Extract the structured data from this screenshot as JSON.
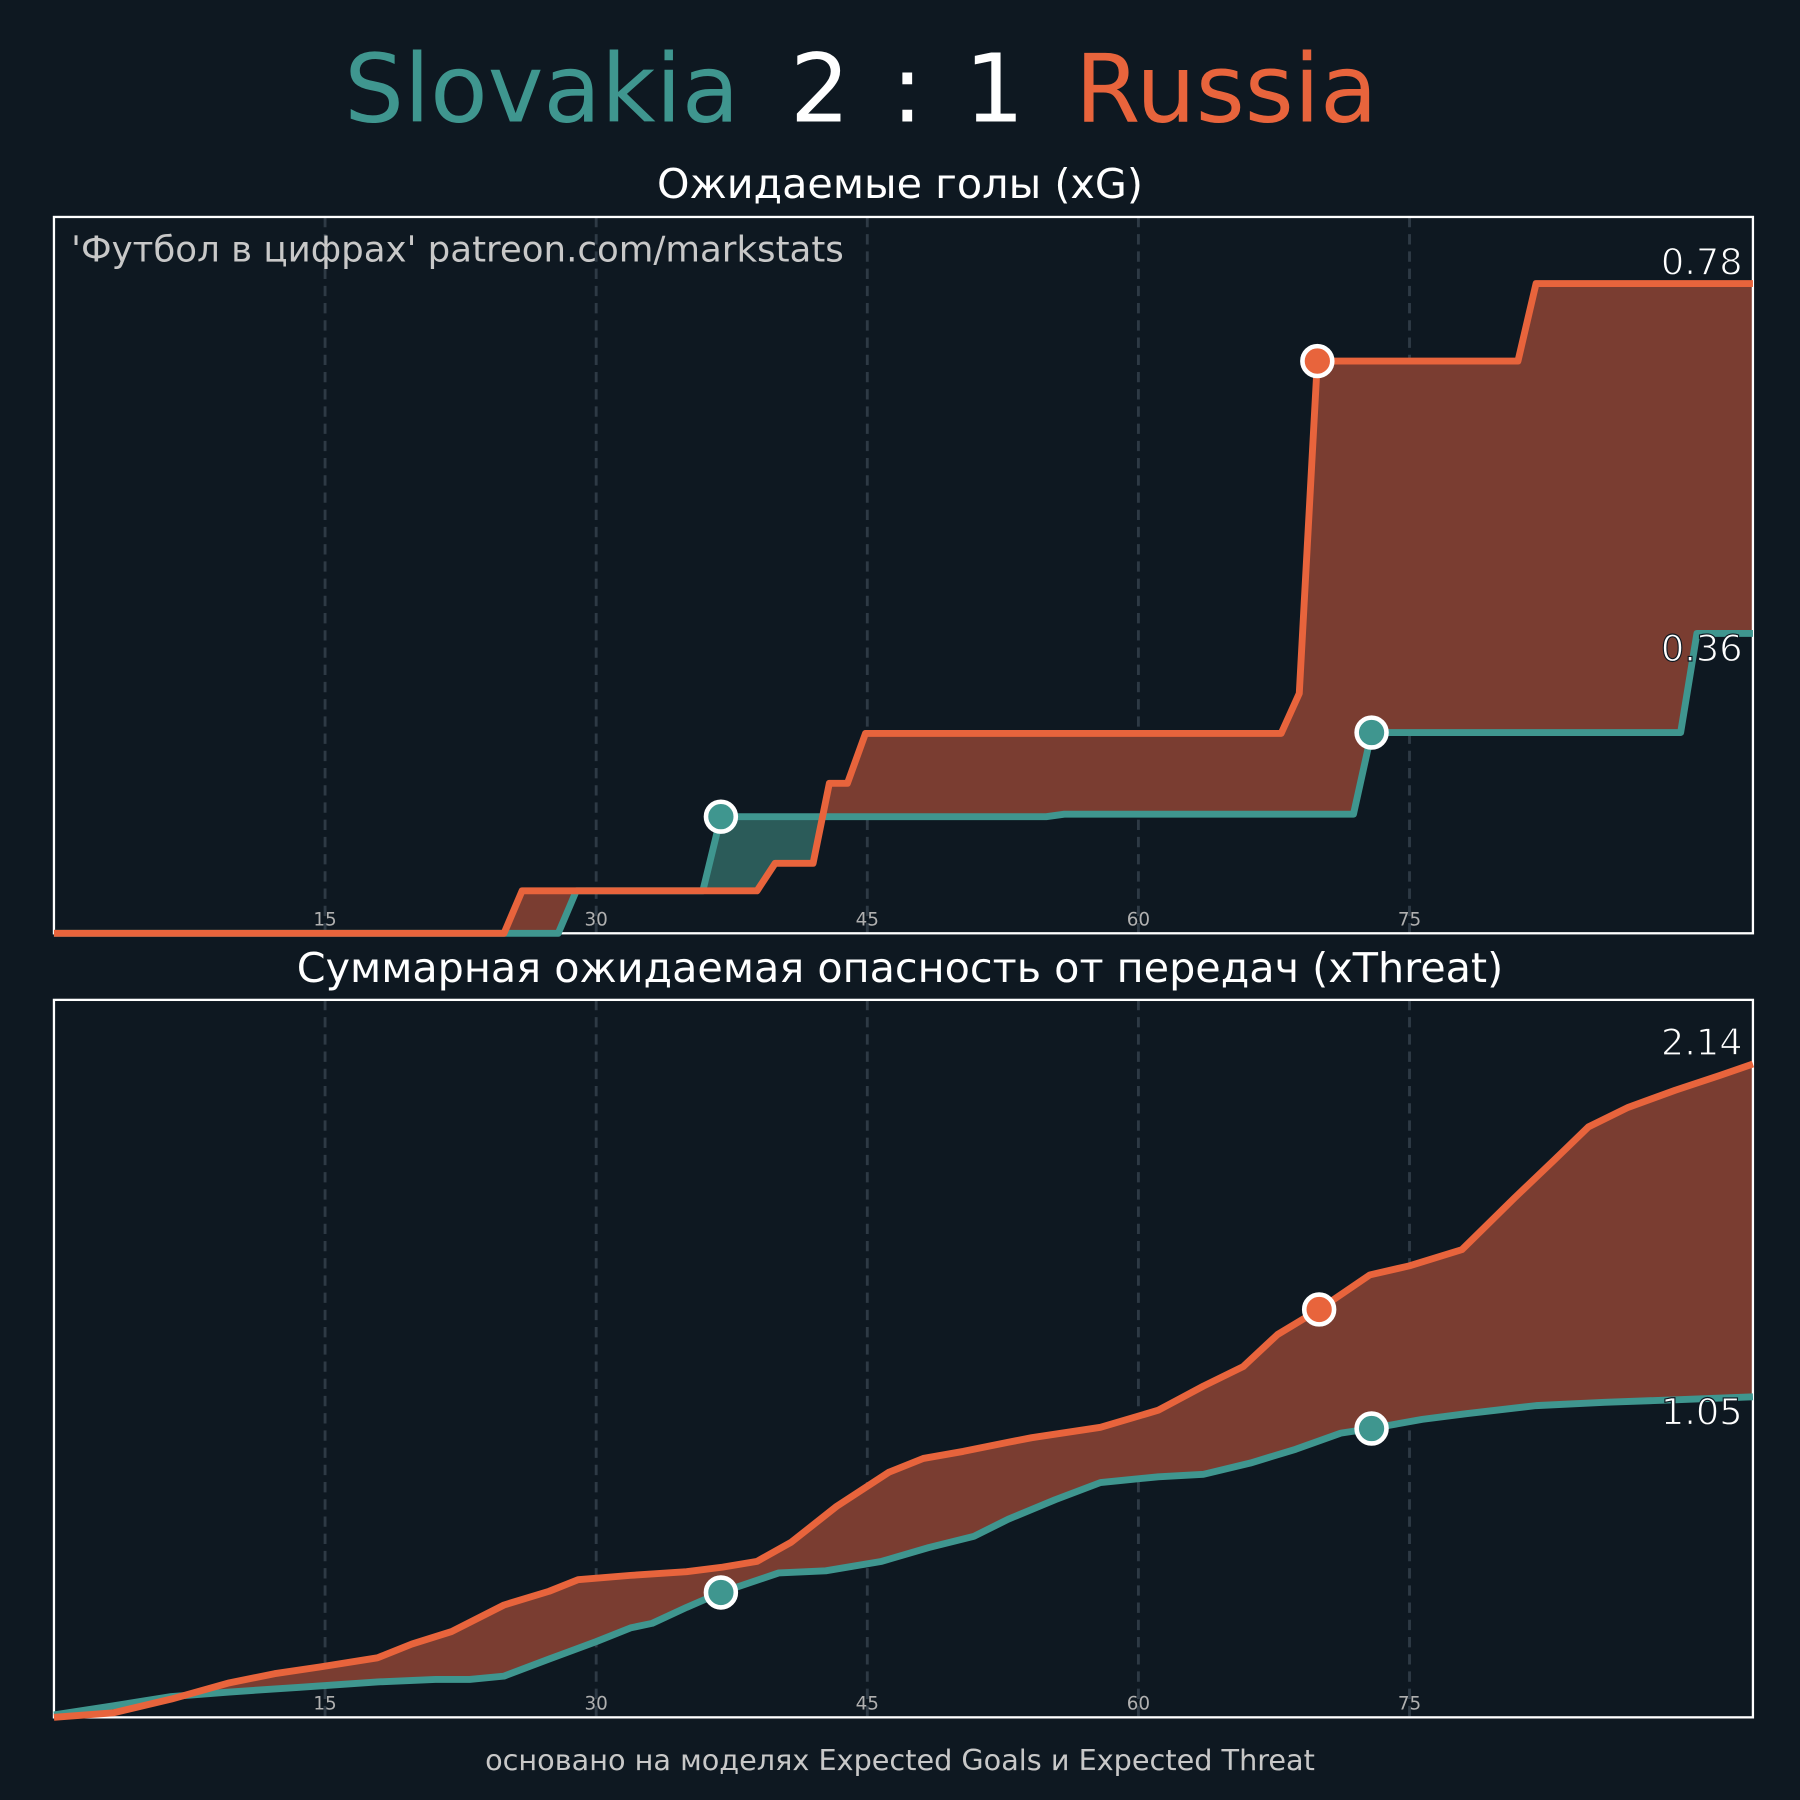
{
  "header": {
    "home_score": 2,
    "separator": ":",
    "away_score": 1
  },
  "footnote": "основано на моделях Expected Goals и Expected Threat",
  "chart_data": [
    {
      "type": "line",
      "title": "Ожидаемые голы (xG)",
      "annotation": "'Футбол в цифрах' patreon.com/markstats",
      "xlim": [
        0,
        94
      ],
      "xticks": [
        15,
        30,
        45,
        60,
        75
      ],
      "ylim": [
        0,
        0.86
      ],
      "grid": true,
      "series": [
        {
          "name": "Slovakia",
          "color": "#3f968f",
          "fill": "#2b5b59",
          "end_value": 0.36,
          "x": [
            0,
            27.9,
            28.9,
            35.9,
            36.9,
            54.9,
            55.9,
            71.9,
            72.9,
            90,
            90.9,
            94
          ],
          "values": [
            0,
            0,
            0.051,
            0.051,
            0.14,
            0.14,
            0.143,
            0.143,
            0.241,
            0.241,
            0.36,
            0.36
          ],
          "goals": {
            "x": [
              36.9,
              72.9
            ],
            "values": [
              0.14,
              0.241
            ]
          }
        },
        {
          "name": "Russia",
          "color": "#e8643c",
          "fill": "#7a3d31",
          "end_value": 0.78,
          "x": [
            0,
            24.9,
            25.9,
            38.9,
            39.9,
            42,
            42.9,
            43.9,
            44.9,
            67.9,
            68.9,
            69.9,
            81,
            82,
            94
          ],
          "values": [
            0,
            0,
            0.051,
            0.051,
            0.084,
            0.084,
            0.18,
            0.18,
            0.24,
            0.24,
            0.288,
            0.687,
            0.687,
            0.78,
            0.78
          ],
          "goals": {
            "x": [
              69.9
            ],
            "values": [
              0.687
            ]
          }
        }
      ]
    },
    {
      "type": "line",
      "title": "Суммарная ожидаемая опасность от передач (xThreat)",
      "xlim": [
        0,
        94
      ],
      "xticks": [
        15,
        30,
        45,
        60,
        75
      ],
      "ylim": [
        0,
        2.35
      ],
      "grid": true,
      "series": [
        {
          "name": "Slovakia",
          "color": "#3f968f",
          "fill": "#2b5b59",
          "end_value": 1.05,
          "x": [
            0,
            3.3,
            6.5,
            9.7,
            13.5,
            17.9,
            21.1,
            23.0,
            24.9,
            27.4,
            30.0,
            31.9,
            33.1,
            35.0,
            36.9,
            40.1,
            42.7,
            45.8,
            48.4,
            50.9,
            52.8,
            55.4,
            57.9,
            61.1,
            63.6,
            66.2,
            68.7,
            71.2,
            72.9,
            75.7,
            78.2,
            82.0,
            85.8,
            89.7,
            94
          ],
          "values": [
            0.008,
            0.038,
            0.068,
            0.083,
            0.098,
            0.116,
            0.124,
            0.124,
            0.135,
            0.191,
            0.248,
            0.293,
            0.308,
            0.36,
            0.409,
            0.473,
            0.48,
            0.511,
            0.556,
            0.593,
            0.649,
            0.713,
            0.769,
            0.788,
            0.796,
            0.833,
            0.878,
            0.931,
            0.946,
            0.976,
            0.995,
            1.021,
            1.032,
            1.04,
            1.05
          ],
          "goals": {
            "x": [
              36.9,
              72.9
            ],
            "values": [
              0.409,
              0.946
            ]
          }
        },
        {
          "name": "Russia",
          "color": "#e8643c",
          "fill": "#7a3d31",
          "end_value": 2.14,
          "x": [
            0,
            3.3,
            6.5,
            9.7,
            12.2,
            14.7,
            17.9,
            19.8,
            22.0,
            24.9,
            27.4,
            29.0,
            31.9,
            35.0,
            37.0,
            38.9,
            40.8,
            43.3,
            46.2,
            48.1,
            50.3,
            52.8,
            54.1,
            57.9,
            61.1,
            63.6,
            65.8,
            67.7,
            70.0,
            72.8,
            75.0,
            77.9,
            80.8,
            83.0,
            84.9,
            87.1,
            89.7,
            92.2,
            94
          ],
          "values": [
            0,
            0.015,
            0.06,
            0.113,
            0.143,
            0.165,
            0.195,
            0.24,
            0.281,
            0.368,
            0.413,
            0.451,
            0.465,
            0.477,
            0.492,
            0.511,
            0.574,
            0.691,
            0.803,
            0.848,
            0.871,
            0.901,
            0.916,
            0.95,
            1.006,
            1.085,
            1.149,
            1.254,
            1.336,
            1.449,
            1.479,
            1.532,
            1.701,
            1.825,
            1.934,
            1.998,
            2.054,
            2.103,
            2.14
          ],
          "goals": {
            "x": [
              70.0
            ],
            "values": [
              1.336
            ]
          }
        }
      ]
    }
  ]
}
